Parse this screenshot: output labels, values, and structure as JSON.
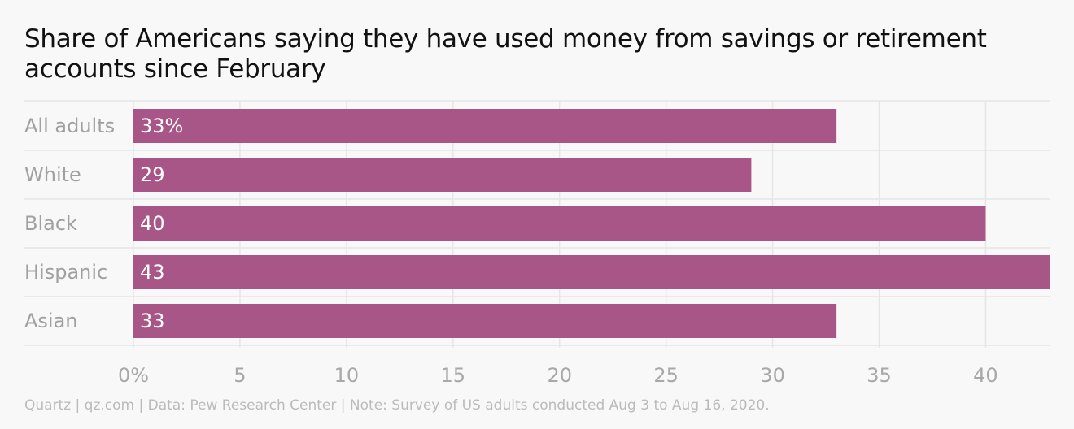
{
  "title": "Share of Americans saying they have used money from savings or retirement accounts since February",
  "footer": "Quartz | qz.com | Data: Pew Research Center | Note: Survey of US adults conducted Aug 3 to Aug 16, 2020.",
  "colors": {
    "bar": "#a85587",
    "category_label": "#a0a0a0",
    "tick_label": "#a8a8a8",
    "grid": "#e6e6e6",
    "value_label": "#ffffff"
  },
  "chart_data": {
    "type": "bar",
    "orientation": "horizontal",
    "categories": [
      "All adults",
      "White",
      "Black",
      "Hispanic",
      "Asian"
    ],
    "values": [
      33,
      29,
      40,
      43,
      33
    ],
    "value_labels": [
      "33%",
      "29",
      "40",
      "43",
      "33"
    ],
    "xlim": [
      0,
      43
    ],
    "xticks": [
      0,
      5,
      10,
      15,
      20,
      25,
      30,
      35,
      40
    ],
    "xtick_labels": [
      "0%",
      "5",
      "10",
      "15",
      "20",
      "25",
      "30",
      "35",
      "40"
    ],
    "grid": true
  }
}
